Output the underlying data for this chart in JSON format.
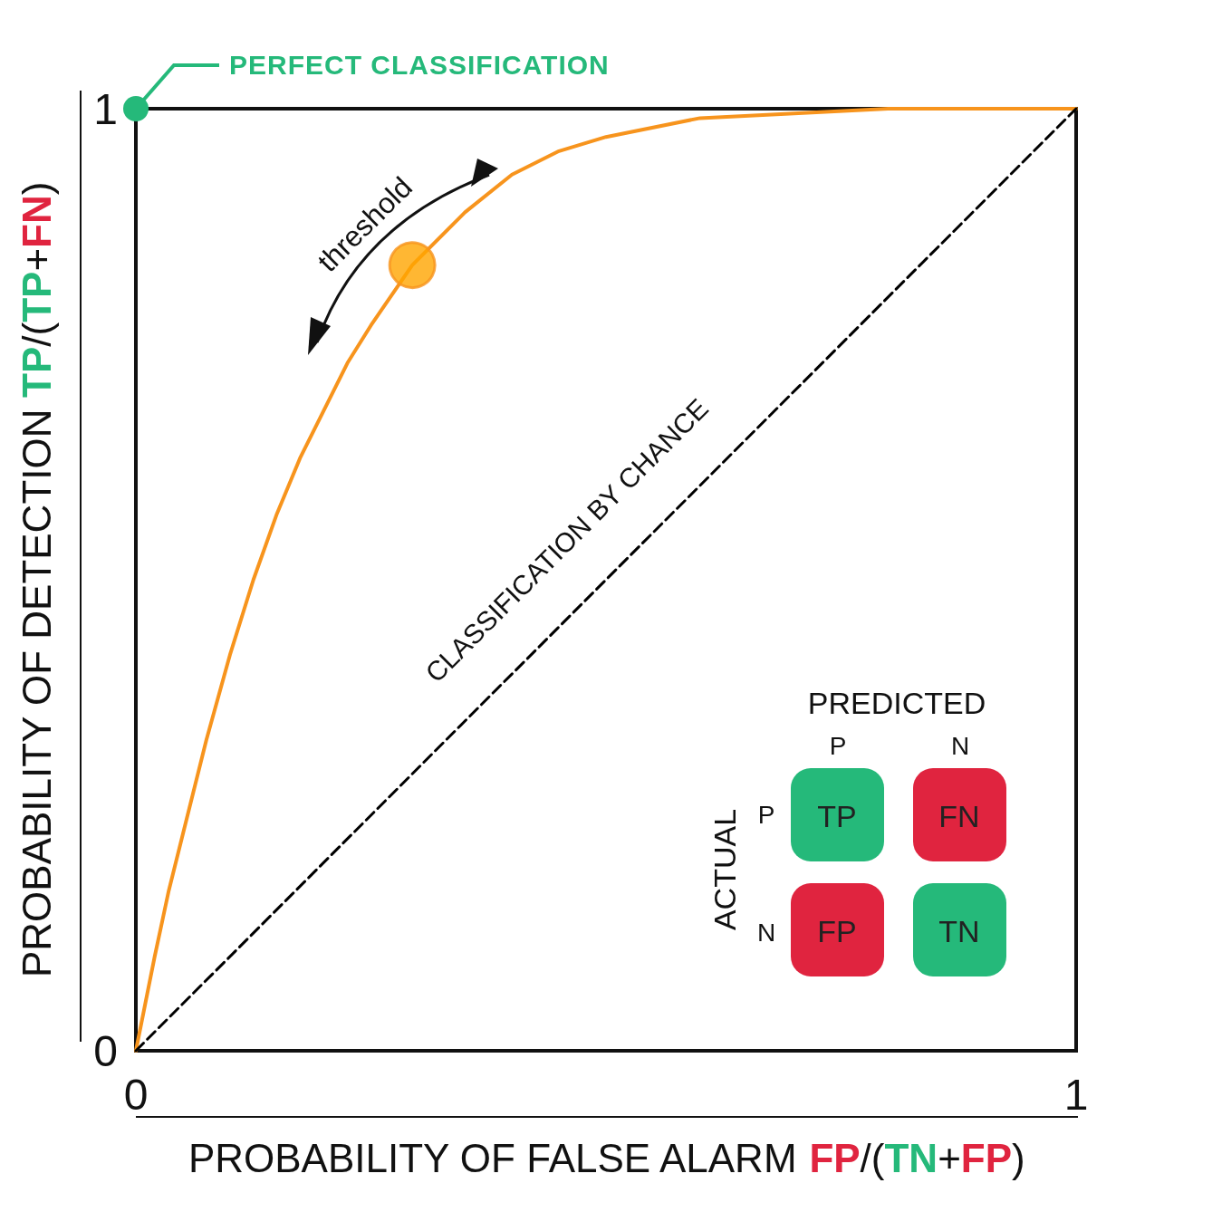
{
  "chart_data": {
    "type": "line",
    "xlabel": "PROBABILITY OF FALSE ALARM FP/(TN+FP)",
    "ylabel": "PROBABILITY OF DETECTION TP/(TP+FN)",
    "xlim": [
      0,
      1
    ],
    "ylim": [
      0,
      1
    ],
    "xticks": [
      0,
      1
    ],
    "yticks": [
      0,
      1
    ],
    "grid": false,
    "legend": false,
    "series": [
      {
        "type": "line",
        "x": [
          0,
          0.01,
          0.02,
          0.035,
          0.05,
          0.075,
          0.1,
          0.125,
          0.15,
          0.175,
          0.2,
          0.225,
          0.25,
          0.294,
          0.35,
          0.4,
          0.45,
          0.5,
          0.6,
          0.7,
          0.8,
          0.9,
          1
        ],
        "values": [
          0,
          0.05,
          0.1,
          0.17,
          0.23,
          0.33,
          0.42,
          0.5,
          0.57,
          0.63,
          0.68,
          0.73,
          0.77,
          0.834,
          0.89,
          0.93,
          0.955,
          0.97,
          0.99,
          0.995,
          1,
          1,
          1
        ],
        "color": "#f7941d",
        "marker": "none",
        "line_style": "solid"
      },
      {
        "name": "CLASSIFICATION BY CHANCE",
        "type": "line",
        "x": [
          0,
          1
        ],
        "values": [
          0,
          1
        ],
        "color": "#000000",
        "marker": "none",
        "line_style": "dashed"
      },
      {
        "type": "scatter",
        "x": [
          0.294
        ],
        "values": [
          0.834
        ],
        "color": "#ffa500",
        "marker": "circle"
      }
    ],
    "annotations": [
      {
        "text": "PERFECT CLASSIFICATION",
        "x": 0,
        "y": 1
      },
      {
        "text": "threshold",
        "x": 0.294,
        "y": 0.834
      },
      "PREDICTED",
      "ACTUAL",
      "P",
      "N",
      "P",
      "N",
      "TP",
      "FN",
      "FP",
      "TN"
    ]
  }
}
